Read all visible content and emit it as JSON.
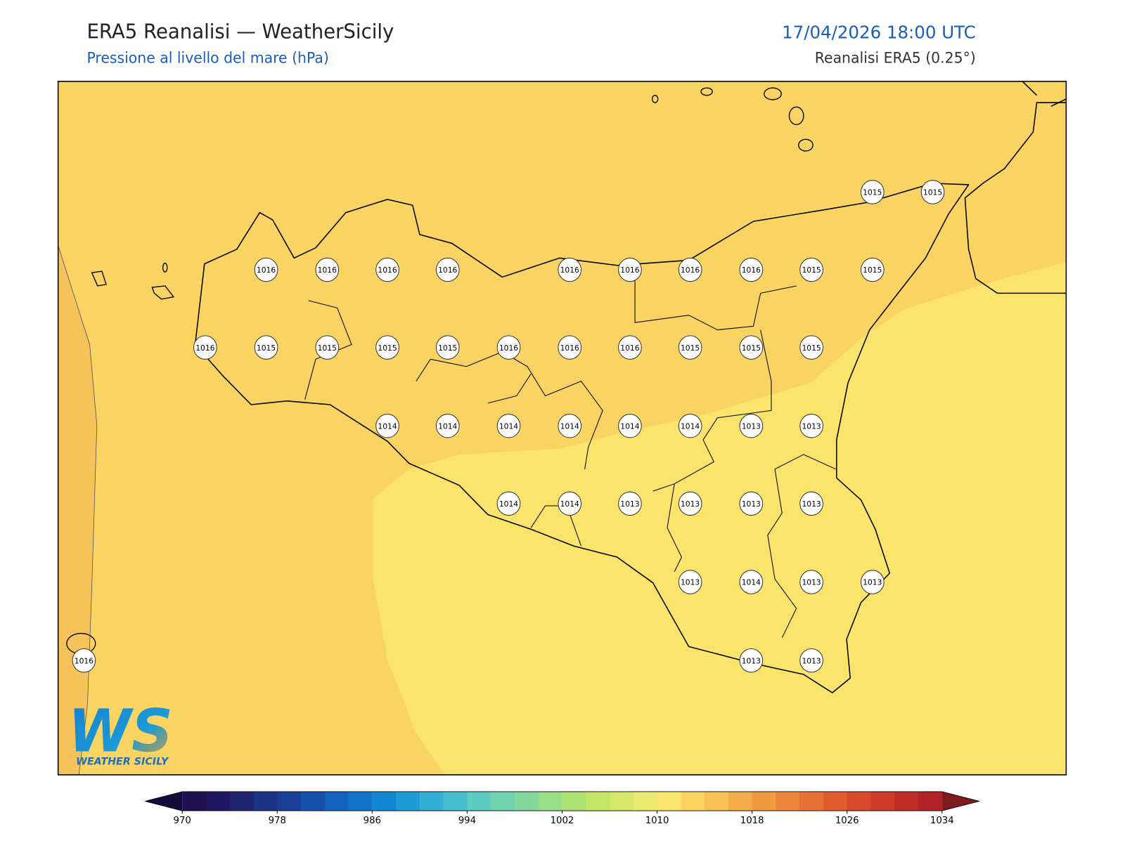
{
  "header": {
    "title": "ERA5 Reanalisi — WeatherSicily",
    "subtitle": "Pressione al livello del mare (hPa)",
    "datetime": "17/04/2026 18:00 UTC",
    "source": "Reanalisi ERA5 (0.25°)"
  },
  "stations": [
    1015,
    1015,
    1016,
    1016,
    1016,
    1016,
    1016,
    1016,
    1016,
    1016,
    1015,
    1015,
    1016,
    1015,
    1015,
    1015,
    1015,
    1016,
    1016,
    1016,
    1015,
    1015,
    1015,
    1014,
    1014,
    1014,
    1014,
    1014,
    1014,
    1013,
    1013,
    1014,
    1014,
    1013,
    1013,
    1013,
    1013,
    1013,
    1014,
    1013,
    1013,
    1016,
    1013,
    1013
  ],
  "colorbar": {
    "range": [
      970,
      1034
    ],
    "ticks": [
      970,
      978,
      986,
      994,
      1002,
      1010,
      1018,
      1026,
      1034
    ],
    "colors": [
      "#1e1250",
      "#201860",
      "#1f2470",
      "#1c3383",
      "#1a3f97",
      "#1750ac",
      "#1462bf",
      "#1274cb",
      "#1488d3",
      "#1f9bd6",
      "#33aed6",
      "#47bfcf",
      "#5ccbc2",
      "#6fd3b0",
      "#83d99c",
      "#98de88",
      "#ade174",
      "#c2e566",
      "#d6e86a",
      "#e9ea70",
      "#fbe46b",
      "#fbd35f",
      "#f7c153",
      "#f3ad4a",
      "#f09a42",
      "#ec863b",
      "#e77134",
      "#e15c2e",
      "#d74a2a",
      "#cc3a27",
      "#bf2c26",
      "#b02225"
    ]
  },
  "logo": {
    "mark": "WS",
    "name": "WEATHER SICILY"
  }
}
